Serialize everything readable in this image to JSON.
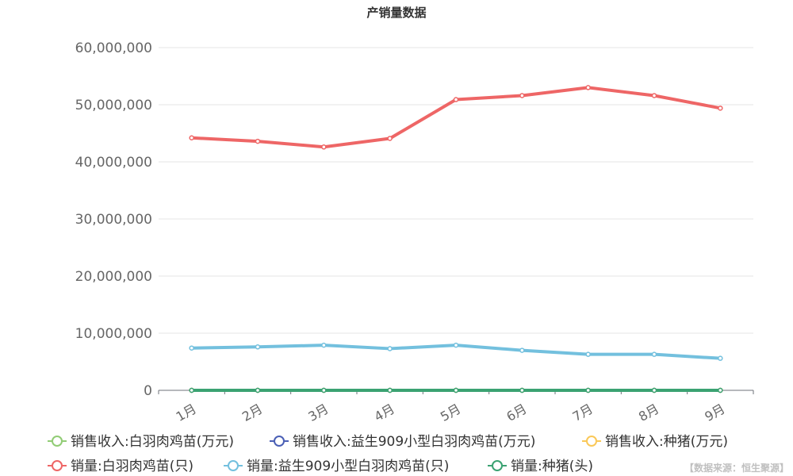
{
  "chart_data": {
    "type": "line",
    "title": "产销量数据",
    "categories": [
      "1月",
      "2月",
      "3月",
      "4月",
      "5月",
      "6月",
      "7月",
      "8月",
      "9月"
    ],
    "ylim": [
      0,
      60000000
    ],
    "yticks": [
      0,
      10000000,
      20000000,
      30000000,
      40000000,
      50000000,
      60000000
    ],
    "ytick_labels": [
      "0",
      "10,000,000",
      "20,000,000",
      "30,000,000",
      "40,000,000",
      "50,000,000",
      "60,000,000"
    ],
    "grid": true,
    "legend_position": "bottom",
    "series": [
      {
        "name": "销售收入:白羽肉鸡苗(万元)",
        "color": "#91cc75",
        "values": [
          0,
          0,
          0,
          0,
          0,
          0,
          0,
          0,
          0
        ]
      },
      {
        "name": "销售收入:益生909小型白羽肉鸡苗(万元)",
        "color": "#4a5fb5",
        "values": [
          0,
          0,
          0,
          0,
          0,
          0,
          0,
          0,
          0
        ]
      },
      {
        "name": "销售收入:种猪(万元)",
        "color": "#fac858",
        "values": [
          0,
          0,
          0,
          0,
          0,
          0,
          0,
          0,
          0
        ]
      },
      {
        "name": "销量:白羽肉鸡苗(只)",
        "color": "#ee6666",
        "values": [
          44200000,
          43600000,
          42600000,
          44100000,
          50900000,
          51600000,
          53000000,
          51600000,
          49400000
        ]
      },
      {
        "name": "销量:益生909小型白羽肉鸡苗(只)",
        "color": "#73c0de",
        "values": [
          7400000,
          7600000,
          7900000,
          7300000,
          7900000,
          7000000,
          6300000,
          6300000,
          5600000
        ]
      },
      {
        "name": "销量:种猪(头)",
        "color": "#3ba272",
        "values": [
          0,
          0,
          0,
          0,
          0,
          0,
          0,
          0,
          0
        ]
      }
    ]
  },
  "source_label": "【数据来源：恒生聚源】"
}
